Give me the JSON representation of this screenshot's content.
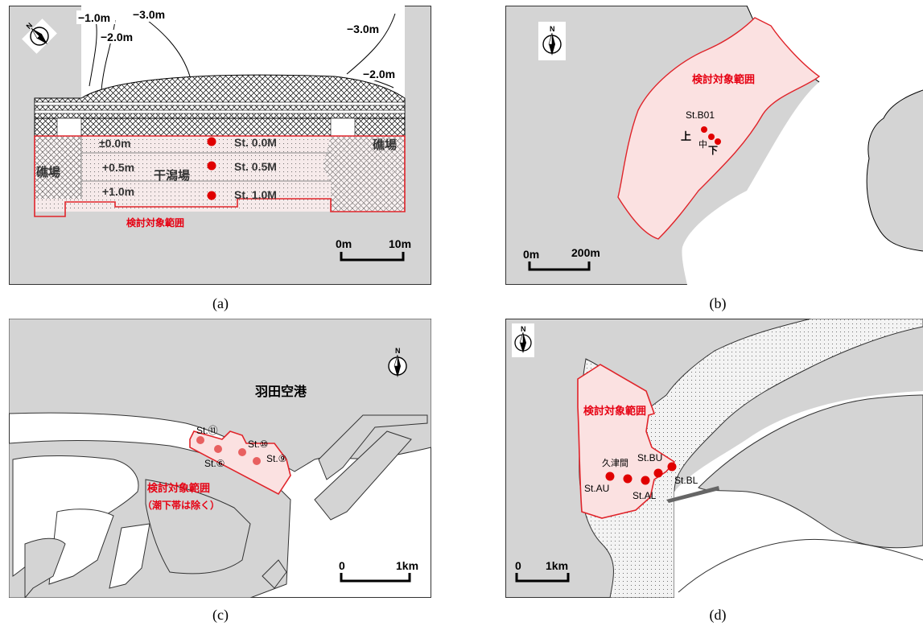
{
  "panels": {
    "a": {
      "caption": "(a)",
      "north": "N",
      "contours": [
        "−1.0m",
        "−2.0m",
        "−3.0m",
        "−3.0m",
        "−2.0m"
      ],
      "levels": [
        "±0.0m",
        "+0.5m",
        "+1.0m"
      ],
      "stations": [
        "St. 0.0M",
        "St. 0.5M",
        "St. 1.0M"
      ],
      "zones": {
        "tidal_flat": "干潟場",
        "rocky_left": "礁場",
        "rocky_right": "礁場"
      },
      "area_label": "検討対象範囲",
      "scale": [
        "0m",
        "10m"
      ]
    },
    "b": {
      "caption": "(b)",
      "north": "N",
      "area_label": "検討対象範囲",
      "station": "St.B01",
      "marks": [
        "上",
        "中",
        "下"
      ],
      "scale": [
        "0m",
        "200m"
      ]
    },
    "c": {
      "caption": "(c)",
      "north": "N",
      "place": "羽田空港",
      "stations": [
        "St.⑪",
        "St.⑩",
        "St.⑨",
        "St.⑥"
      ],
      "area_label": "検討対象範囲",
      "area_note": "（潮下帯は除く）",
      "scale": [
        "0",
        "1km"
      ]
    },
    "d": {
      "caption": "(d)",
      "north": "N",
      "area_label": "検討対象範囲",
      "place": "久津間",
      "stations": [
        "St.BU",
        "St.AU",
        "St.AL",
        "St.BL"
      ],
      "scale": [
        "0",
        "1km"
      ]
    }
  },
  "colors": {
    "land": "#d4d4d4",
    "study_fill": "#fbe1e1",
    "study_edge": "#e0242a",
    "station": "#e00000",
    "label_red": "#e60012"
  }
}
